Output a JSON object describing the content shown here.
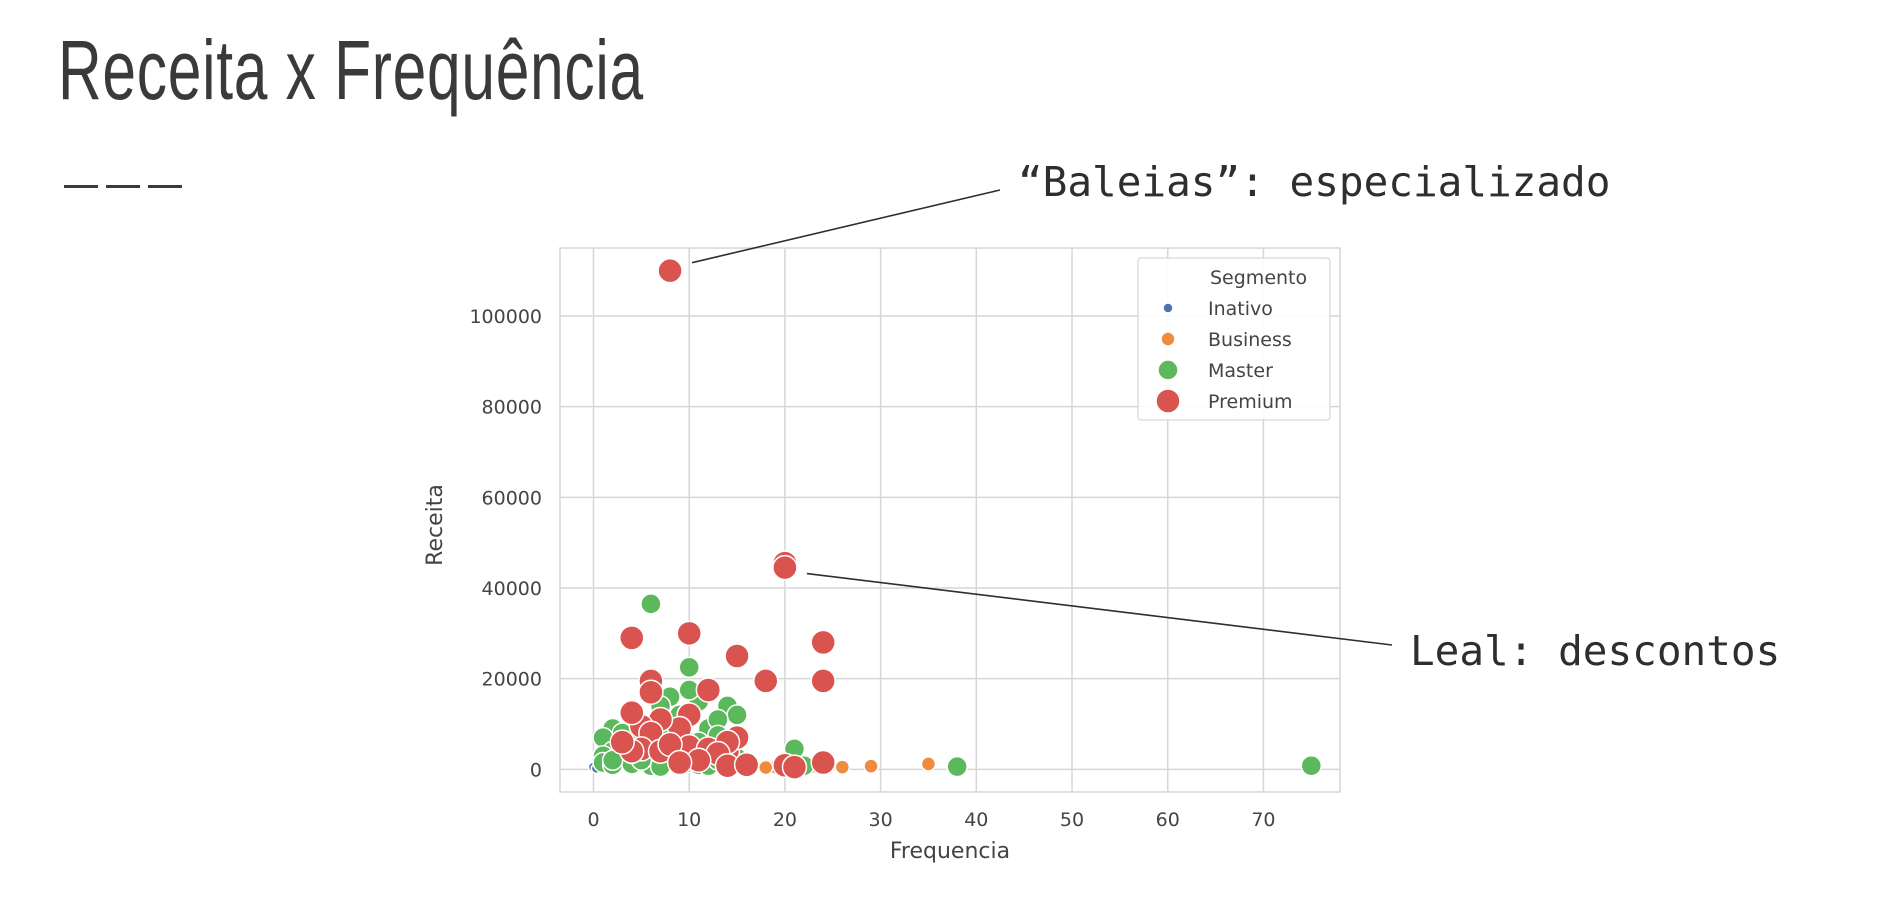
{
  "slide": {
    "title": "Receita x Frequência",
    "dashes": "———"
  },
  "annotations": [
    {
      "text": "“Baleias”: especializado",
      "target_x": 8,
      "target_y": 110000
    },
    {
      "text": "Leal: descontos",
      "target_x": 20,
      "target_y": 44500
    }
  ],
  "colors": {
    "Inativo": "#4c72b0",
    "Business": "#f08a3c",
    "Master": "#5cb85c",
    "Premium": "#d9534f",
    "grid": "#d6d6d6",
    "text": "#444444"
  },
  "chart_data": {
    "type": "scatter",
    "title": "",
    "xlabel": "Frequencia",
    "ylabel": "Receita",
    "xlim": [
      -3.5,
      78
    ],
    "ylim": [
      -5000,
      115000
    ],
    "xticks": [
      0,
      10,
      20,
      30,
      40,
      50,
      60,
      70
    ],
    "yticks": [
      0,
      20000,
      40000,
      60000,
      80000,
      100000
    ],
    "grid": true,
    "legend": {
      "title": "Segmento",
      "position": "top-right"
    },
    "series": [
      {
        "name": "Inativo",
        "size": 5,
        "points": [
          [
            0,
            500
          ],
          [
            0.5,
            300
          ],
          [
            1,
            800
          ],
          [
            0.3,
            200
          ]
        ]
      },
      {
        "name": "Business",
        "size": 7,
        "points": [
          [
            19,
            500
          ],
          [
            21,
            600
          ],
          [
            22,
            500
          ],
          [
            23,
            700
          ],
          [
            24,
            800
          ],
          [
            26,
            500
          ],
          [
            29,
            700
          ],
          [
            35,
            1200
          ],
          [
            16,
            600
          ],
          [
            18,
            400
          ]
        ]
      },
      {
        "name": "Master",
        "size": 10,
        "points": [
          [
            6,
            36500
          ],
          [
            10,
            22500
          ],
          [
            11,
            15000
          ],
          [
            14,
            14000
          ],
          [
            15,
            12000
          ],
          [
            8,
            16000
          ],
          [
            7,
            14000
          ],
          [
            9,
            10000
          ],
          [
            12,
            9000
          ],
          [
            2,
            9000
          ],
          [
            3,
            8000
          ],
          [
            1,
            7000
          ],
          [
            4,
            6000
          ],
          [
            5,
            5000
          ],
          [
            6,
            4500
          ],
          [
            7,
            3000
          ],
          [
            8,
            2500
          ],
          [
            9,
            2000
          ],
          [
            10,
            1500
          ],
          [
            11,
            1000
          ],
          [
            12,
            800
          ],
          [
            13,
            2000
          ],
          [
            14,
            3000
          ],
          [
            2,
            4000
          ],
          [
            3,
            2500
          ],
          [
            1,
            3000
          ],
          [
            1,
            1500
          ],
          [
            2,
            1000
          ],
          [
            4,
            1200
          ],
          [
            6,
            800
          ],
          [
            7,
            600
          ],
          [
            5,
            2000
          ],
          [
            8,
            5500
          ],
          [
            10,
            6000
          ],
          [
            21,
            4500
          ],
          [
            22,
            800
          ],
          [
            38,
            600
          ],
          [
            75,
            800
          ],
          [
            3,
            6000
          ],
          [
            9,
            12000
          ],
          [
            13,
            11000
          ],
          [
            11,
            6000
          ],
          [
            15,
            2500
          ],
          [
            16,
            1200
          ],
          [
            5,
            9000
          ],
          [
            7,
            9000
          ],
          [
            10,
            17500
          ],
          [
            13,
            7500
          ],
          [
            2,
            2000
          ],
          [
            4,
            3500
          ]
        ]
      },
      {
        "name": "Premium",
        "size": 12,
        "points": [
          [
            8,
            110000
          ],
          [
            20,
            45500
          ],
          [
            20,
            44500
          ],
          [
            24,
            28000
          ],
          [
            24,
            19500
          ],
          [
            4,
            29000
          ],
          [
            10,
            30000
          ],
          [
            15,
            25000
          ],
          [
            18,
            19500
          ],
          [
            6,
            19500
          ],
          [
            6,
            17000
          ],
          [
            12,
            17500
          ],
          [
            10,
            12000
          ],
          [
            9,
            9000
          ],
          [
            7,
            11000
          ],
          [
            5,
            9500
          ],
          [
            6,
            8000
          ],
          [
            4,
            12500
          ],
          [
            5,
            4500
          ],
          [
            4,
            4000
          ],
          [
            7,
            4000
          ],
          [
            10,
            5000
          ],
          [
            12,
            4500
          ],
          [
            14,
            4000
          ],
          [
            15,
            7000
          ],
          [
            14,
            6000
          ],
          [
            13,
            3500
          ],
          [
            14,
            800
          ],
          [
            16,
            1000
          ],
          [
            20,
            900
          ],
          [
            21,
            500
          ],
          [
            24,
            1500
          ],
          [
            11,
            2000
          ],
          [
            8,
            5500
          ],
          [
            3,
            6000
          ],
          [
            9,
            1500
          ]
        ]
      }
    ]
  }
}
